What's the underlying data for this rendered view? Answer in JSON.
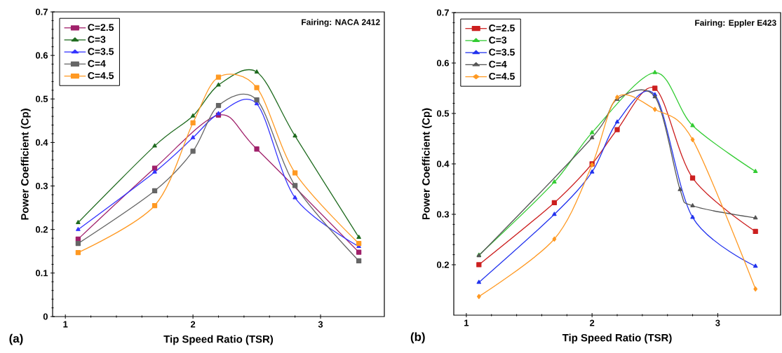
{
  "chart_data": [
    {
      "type": "line",
      "xlabel": "Tip Speed Ratio (TSR)",
      "ylabel": "Power Coefficient (Cp)",
      "annotations": [
        "Fairing: NACA 2412",
        "(a)"
      ],
      "x": [
        1.1,
        1.7,
        2.0,
        2.2,
        2.5,
        2.8,
        3.3
      ],
      "xlim": [
        0.9,
        3.5
      ],
      "xticks": [
        1,
        2,
        3
      ],
      "ylim": [
        0,
        0.7
      ],
      "yticks": [
        0,
        0.1,
        0.2,
        0.3,
        0.4,
        0.5,
        0.6,
        0.7
      ],
      "grid": false,
      "legend": "top left",
      "series": [
        {
          "name": "C=2.5",
          "color": "#a0206a",
          "marker": "square",
          "values": [
            0.178,
            0.341,
            null,
            0.463,
            0.385,
            null,
            0.148
          ]
        },
        {
          "name": "C=3",
          "color": "#1f6b1f",
          "marker": "triangle",
          "values": [
            0.216,
            0.392,
            0.461,
            0.532,
            0.562,
            0.415,
            0.182
          ]
        },
        {
          "name": "C=3.5",
          "color": "#3333ff",
          "marker": "triangle",
          "values": [
            0.2,
            0.332,
            0.411,
            0.466,
            0.489,
            0.273,
            0.161
          ]
        },
        {
          "name": "C=4",
          "color": "#666666",
          "marker": "square",
          "values": [
            0.168,
            0.289,
            0.38,
            0.485,
            0.498,
            0.301,
            0.128
          ]
        },
        {
          "name": "C=4.5",
          "color": "#ff9922",
          "marker": "square",
          "values": [
            0.147,
            0.255,
            0.445,
            0.55,
            0.526,
            0.33,
            0.168
          ]
        }
      ]
    },
    {
      "type": "line",
      "xlabel": "Tip Speed Ratio (TSR)",
      "ylabel": "Power Coefficient (Cp)",
      "annotations": [
        "Fairing: Eppler E423",
        "(b)"
      ],
      "x": [
        1.1,
        1.7,
        2.0,
        2.2,
        2.5,
        2.8,
        3.3
      ],
      "xlim": [
        0.9,
        3.5
      ],
      "xticks": [
        1,
        2,
        3
      ],
      "ylim": [
        0.1,
        0.7
      ],
      "yticks": [
        0.2,
        0.3,
        0.4,
        0.5,
        0.6,
        0.7
      ],
      "grid": false,
      "legend": "top left",
      "series": [
        {
          "name": "C=2.5",
          "color": "#cc1f1f",
          "marker": "square",
          "values": [
            0.2,
            0.323,
            0.4,
            0.468,
            0.55,
            0.372,
            0.266
          ]
        },
        {
          "name": "C=3",
          "color": "#33cc33",
          "marker": "triangle",
          "values": [
            0.219,
            0.364,
            0.462,
            null,
            0.581,
            0.476,
            0.385
          ]
        },
        {
          "name": "C=3.5",
          "color": "#2233ee",
          "marker": "triangle",
          "values": [
            0.165,
            0.3,
            0.384,
            0.483,
            0.537,
            0.294,
            0.197
          ]
        },
        {
          "name": "C=4",
          "color": "#555555",
          "marker": "triangle",
          "x": [
            1.1,
            2.0,
            2.2,
            2.5,
            2.7,
            2.8,
            3.3
          ],
          "values": [
            0.218,
            0.452,
            0.528,
            0.533,
            0.349,
            0.317,
            0.293
          ]
        },
        {
          "name": "C=4.5",
          "color": "#ff9922",
          "marker": "diamond",
          "values": [
            0.137,
            0.251,
            0.398,
            0.532,
            0.508,
            0.448,
            0.152
          ]
        }
      ]
    }
  ]
}
